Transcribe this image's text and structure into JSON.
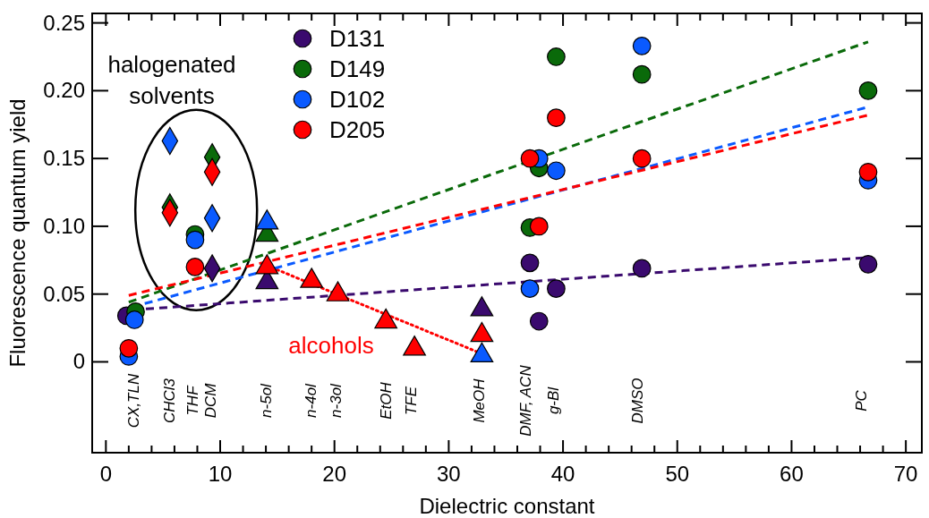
{
  "chart_data": {
    "type": "scatter",
    "xlabel": "Dielectric constant",
    "ylabel": "Fluorescence quantum yield",
    "xlim": [
      -1.2,
      71.4
    ],
    "ylim": [
      -0.067,
      0.257
    ],
    "xticks": [
      0,
      {
        "value": 2,
        "label": null
      },
      {
        "value": 4,
        "label": null
      },
      {
        "value": 6,
        "label": null
      },
      {
        "value": 8,
        "label": null
      },
      10,
      {
        "value": 12,
        "label": null
      },
      {
        "value": 14,
        "label": null
      },
      {
        "value": 16,
        "label": null
      },
      {
        "value": 18,
        "label": null
      },
      20,
      {
        "value": 22,
        "label": null
      },
      {
        "value": 24,
        "label": null
      },
      {
        "value": 26,
        "label": null
      },
      {
        "value": 28,
        "label": null
      },
      30,
      {
        "value": 32,
        "label": null
      },
      {
        "value": 34,
        "label": null
      },
      {
        "value": 36,
        "label": null
      },
      {
        "value": 38,
        "label": null
      },
      40,
      {
        "value": 42,
        "label": null
      },
      {
        "value": 44,
        "label": null
      },
      {
        "value": 46,
        "label": null
      },
      {
        "value": 48,
        "label": null
      },
      50,
      {
        "value": 52,
        "label": null
      },
      {
        "value": 54,
        "label": null
      },
      {
        "value": 56,
        "label": null
      },
      {
        "value": 58,
        "label": null
      },
      60,
      {
        "value": 62,
        "label": null
      },
      {
        "value": 64,
        "label": null
      },
      {
        "value": 66,
        "label": null
      },
      {
        "value": 68,
        "label": null
      },
      70
    ],
    "yticks": [
      0,
      0.05,
      {
        "value": 0.1,
        "label": "0.10"
      },
      0.15,
      {
        "value": 0.2,
        "label": "0.20"
      },
      0.25
    ],
    "grid": false,
    "legend": "top left",
    "series": [
      {
        "name": "D131",
        "marker": "circle",
        "color": "#3a0a6e",
        "x": [
          1.8,
          37.1,
          37.9,
          39.4,
          46.9,
          66.7
        ],
        "values": [
          0.034,
          0.073,
          0.03,
          0.054,
          0.069,
          0.072
        ]
      },
      {
        "name": "D149",
        "marker": "circle",
        "color": "#0a6a0a",
        "x": [
          2.6,
          7.8,
          37.1,
          37.9,
          39.4,
          46.9,
          66.7
        ],
        "values": [
          0.037,
          0.094,
          0.099,
          0.143,
          0.225,
          0.212,
          0.2
        ]
      },
      {
        "name": "D102",
        "marker": "circle",
        "color": "#0a5aff",
        "x": [
          2.5,
          2.0,
          7.8,
          37.1,
          37.9,
          39.4,
          46.9,
          66.7
        ],
        "values": [
          0.031,
          0.004,
          0.09,
          0.054,
          0.15,
          0.141,
          0.233,
          0.134
        ]
      },
      {
        "name": "D205",
        "marker": "circle",
        "color": "#ff0000",
        "x": [
          2.0,
          7.8,
          37.1,
          37.9,
          39.4,
          46.9,
          66.7
        ],
        "values": [
          0.01,
          0.07,
          0.15,
          0.1,
          0.18,
          0.15,
          0.14
        ]
      },
      {
        "type": "scatter",
        "marker": "diamond",
        "color": "#3a0a6e",
        "x": [
          9.3
        ],
        "values": [
          0.069
        ]
      },
      {
        "type": "scatter",
        "marker": "diamond",
        "color": "#0a6a0a",
        "x": [
          5.6,
          9.3
        ],
        "values": [
          0.114,
          0.151
        ]
      },
      {
        "type": "scatter",
        "marker": "diamond",
        "color": "#0a5aff",
        "x": [
          5.6,
          9.3
        ],
        "values": [
          0.163,
          0.106
        ]
      },
      {
        "type": "scatter",
        "marker": "diamond",
        "color": "#ff0000",
        "x": [
          5.6,
          9.3
        ],
        "values": [
          0.11,
          0.14
        ]
      },
      {
        "type": "line",
        "line_style": "dotted",
        "marker": "none",
        "color": "#ff0000",
        "x": [
          14.1,
          32.9
        ],
        "values": [
          0.071,
          0.006
        ]
      },
      {
        "type": "scatter",
        "marker": "triangle",
        "color": "#3a0a6e",
        "x": [
          14.1,
          32.9
        ],
        "values": [
          0.06,
          0.04
        ]
      },
      {
        "type": "scatter",
        "marker": "triangle",
        "color": "#0a6a0a",
        "x": [
          14.1
        ],
        "values": [
          0.095
        ]
      },
      {
        "type": "scatter",
        "marker": "triangle",
        "color": "#0a5aff",
        "x": [
          14.1,
          32.9
        ],
        "values": [
          0.104,
          0.006
        ]
      },
      {
        "type": "scatter",
        "marker": "triangle",
        "color": "#ff0000",
        "x": [
          14.1,
          18.0,
          20.3,
          24.5,
          27.0,
          32.9
        ],
        "values": [
          0.071,
          0.061,
          0.051,
          0.031,
          0.011,
          0.021
        ]
      },
      {
        "type": "line",
        "line_style": "dashed",
        "marker": "none",
        "color": "#3a0a6e",
        "x": [
          3.5,
          66.7
        ],
        "values": [
          0.039,
          0.077
        ]
      },
      {
        "type": "line",
        "line_style": "dashed",
        "marker": "none",
        "color": "#0a6a0a",
        "x": [
          2.0,
          66.7
        ],
        "values": [
          0.044,
          0.236
        ]
      },
      {
        "type": "line",
        "line_style": "dashed",
        "marker": "none",
        "color": "#0a5aff",
        "x": [
          3.4,
          66.7
        ],
        "values": [
          0.043,
          0.188
        ]
      },
      {
        "type": "line",
        "line_style": "dashed",
        "marker": "none",
        "color": "#ff0000",
        "x": [
          2.0,
          66.7
        ],
        "values": [
          0.049,
          0.182
        ]
      }
    ],
    "annotations": [
      "halogenated solvents",
      "alcohols",
      "CX,TLN",
      "CHCl3",
      "THF",
      "DCM",
      "n-5ol",
      "n-4ol",
      "n-3ol",
      "EtOH",
      "TFE",
      "MeOH",
      "DMF, ACN",
      "g-Bl",
      "DMSO",
      "PC"
    ]
  }
}
